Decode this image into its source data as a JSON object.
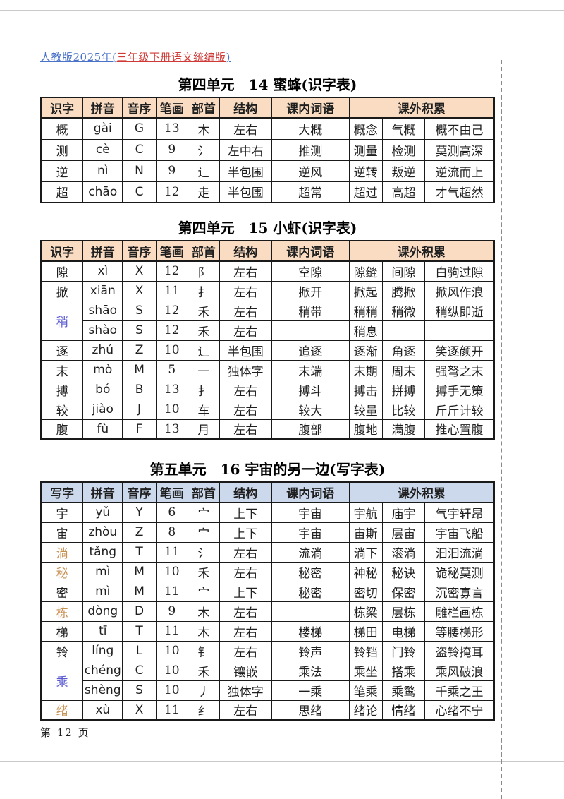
{
  "page": {
    "header": {
      "prefix": "人教版2025年(",
      "highlight": "三年级下册语文统编版",
      "suffix": ")"
    },
    "footer": "第 12 页"
  },
  "colors": {
    "header_peach": "#fadcc3",
    "header_blue": "#ccd8ec",
    "char_blue": "#5b5bd0",
    "char_orange": "#c89050",
    "link_blue": "#4a72c8",
    "link_red": "#d03a36"
  },
  "tables": [
    {
      "title": "第四单元　14 蜜蜂(识字表)",
      "header_bg": "peach",
      "headers": [
        "识字",
        "拼音",
        "音序",
        "笔画",
        "部首",
        "结构",
        "课内词语",
        "课外积累"
      ],
      "rows": [
        {
          "char": "概",
          "color": "normal",
          "rowspan": 1,
          "pinyin": "gài",
          "initial": "G",
          "strokes": "13",
          "radical": "木",
          "structure": "左右",
          "word": "大概",
          "extra": [
            "概念",
            "气概",
            "概不由己"
          ]
        },
        {
          "char": "测",
          "color": "normal",
          "rowspan": 1,
          "pinyin": "cè",
          "initial": "C",
          "strokes": "9",
          "radical": "氵",
          "structure": "左中右",
          "word": "推测",
          "extra": [
            "测量",
            "检测",
            "莫测高深"
          ]
        },
        {
          "char": "逆",
          "color": "normal",
          "rowspan": 1,
          "pinyin": "nì",
          "initial": "N",
          "strokes": "9",
          "radical": "辶",
          "structure": "半包围",
          "word": "逆风",
          "extra": [
            "逆转",
            "叛逆",
            "逆流而上"
          ]
        },
        {
          "char": "超",
          "color": "normal",
          "rowspan": 1,
          "pinyin": "chāo",
          "initial": "C",
          "strokes": "12",
          "radical": "走",
          "structure": "半包围",
          "word": "超常",
          "extra": [
            "超过",
            "高超",
            "才气超然"
          ]
        }
      ]
    },
    {
      "title": "第四单元　15 小虾(识字表)",
      "header_bg": "peach",
      "headers": [
        "识字",
        "拼音",
        "音序",
        "笔画",
        "部首",
        "结构",
        "课内词语",
        "课外积累"
      ],
      "rows": [
        {
          "char": "隙",
          "color": "normal",
          "rowspan": 1,
          "pinyin": "xì",
          "initial": "X",
          "strokes": "12",
          "radical": "阝",
          "structure": "左右",
          "word": "空隙",
          "extra": [
            "隙缝",
            "间隙",
            "白驹过隙"
          ]
        },
        {
          "char": "掀",
          "color": "normal",
          "rowspan": 1,
          "pinyin": "xiān",
          "initial": "X",
          "strokes": "11",
          "radical": "扌",
          "structure": "左右",
          "word": "掀开",
          "extra": [
            "掀起",
            "腾掀",
            "掀风作浪"
          ]
        },
        {
          "char": "稍",
          "color": "blue",
          "rowspan": 2,
          "pinyin": "shāo",
          "initial": "S",
          "strokes": "12",
          "radical": "禾",
          "structure": "左右",
          "word": "稍带",
          "extra": [
            "稍稍",
            "稍微",
            "稍纵即逝"
          ]
        },
        {
          "char": null,
          "color": "normal",
          "rowspan": 1,
          "pinyin": "shào",
          "initial": "S",
          "strokes": "12",
          "radical": "禾",
          "structure": "左右",
          "word": "",
          "extra": [
            "稍息",
            "",
            ""
          ]
        },
        {
          "char": "逐",
          "color": "normal",
          "rowspan": 1,
          "pinyin": "zhú",
          "initial": "Z",
          "strokes": "10",
          "radical": "辶",
          "structure": "半包围",
          "word": "追逐",
          "extra": [
            "逐渐",
            "角逐",
            "笑逐颜开"
          ]
        },
        {
          "char": "末",
          "color": "normal",
          "rowspan": 1,
          "pinyin": "mò",
          "initial": "M",
          "strokes": "5",
          "radical": "一",
          "structure": "独体字",
          "word": "末端",
          "extra": [
            "末期",
            "周末",
            "强弩之末"
          ]
        },
        {
          "char": "搏",
          "color": "normal",
          "rowspan": 1,
          "pinyin": "bó",
          "initial": "B",
          "strokes": "13",
          "radical": "扌",
          "structure": "左右",
          "word": "搏斗",
          "extra": [
            "搏击",
            "拼搏",
            "搏手无策"
          ]
        },
        {
          "char": "较",
          "color": "normal",
          "rowspan": 1,
          "pinyin": "jiào",
          "initial": "J",
          "strokes": "10",
          "radical": "车",
          "structure": "左右",
          "word": "较大",
          "extra": [
            "较量",
            "比较",
            "斤斤计较"
          ]
        },
        {
          "char": "腹",
          "color": "normal",
          "rowspan": 1,
          "pinyin": "fù",
          "initial": "F",
          "strokes": "13",
          "radical": "月",
          "structure": "左右",
          "word": "腹部",
          "extra": [
            "腹地",
            "满腹",
            "推心置腹"
          ]
        }
      ]
    },
    {
      "title": "第五单元　16 宇宙的另一边(写字表)",
      "header_bg": "blue",
      "headers": [
        "写字",
        "拼音",
        "音序",
        "笔画",
        "部首",
        "结构",
        "课内词语",
        "课外积累"
      ],
      "rows": [
        {
          "char": "宇",
          "color": "normal",
          "rowspan": 1,
          "pinyin": "yǔ",
          "initial": "Y",
          "strokes": "6",
          "radical": "宀",
          "structure": "上下",
          "word": "宇宙",
          "extra": [
            "宇航",
            "庙宇",
            "气宇轩昂"
          ]
        },
        {
          "char": "宙",
          "color": "normal",
          "rowspan": 1,
          "pinyin": "zhòu",
          "initial": "Z",
          "strokes": "8",
          "radical": "宀",
          "structure": "上下",
          "word": "宇宙",
          "extra": [
            "宙斯",
            "层宙",
            "宇宙飞船"
          ]
        },
        {
          "char": "淌",
          "color": "orange",
          "rowspan": 1,
          "pinyin": "tǎng",
          "initial": "T",
          "strokes": "11",
          "radical": "氵",
          "structure": "左右",
          "word": "流淌",
          "extra": [
            "淌下",
            "滚淌",
            "汩汩流淌"
          ]
        },
        {
          "char": "秘",
          "color": "orange",
          "rowspan": 1,
          "pinyin": "mì",
          "initial": "M",
          "strokes": "10",
          "radical": "禾",
          "structure": "左右",
          "word": "秘密",
          "extra": [
            "神秘",
            "秘诀",
            "诡秘莫测"
          ]
        },
        {
          "char": "密",
          "color": "normal",
          "rowspan": 1,
          "pinyin": "mì",
          "initial": "M",
          "strokes": "11",
          "radical": "宀",
          "structure": "上下",
          "word": "秘密",
          "extra": [
            "密切",
            "保密",
            "沉密寡言"
          ]
        },
        {
          "char": "栋",
          "color": "orange",
          "rowspan": 1,
          "pinyin": "dòng",
          "initial": "D",
          "strokes": "9",
          "radical": "木",
          "structure": "左右",
          "word": "",
          "extra": [
            "栋梁",
            "层栋",
            "雕栏画栋"
          ]
        },
        {
          "char": "梯",
          "color": "normal",
          "rowspan": 1,
          "pinyin": "tī",
          "initial": "T",
          "strokes": "11",
          "radical": "木",
          "structure": "左右",
          "word": "楼梯",
          "extra": [
            "梯田",
            "电梯",
            "等腰梯形"
          ]
        },
        {
          "char": "铃",
          "color": "normal",
          "rowspan": 1,
          "pinyin": "líng",
          "initial": "L",
          "strokes": "10",
          "radical": "钅",
          "structure": "左右",
          "word": "铃声",
          "extra": [
            "铃铛",
            "门铃",
            "盗铃掩耳"
          ]
        },
        {
          "char": "乘",
          "color": "blue",
          "rowspan": 2,
          "pinyin": "chéng",
          "initial": "C",
          "strokes": "10",
          "radical": "禾",
          "structure": "镶嵌",
          "word": "乘法",
          "extra": [
            "乘坐",
            "搭乘",
            "乘风破浪"
          ]
        },
        {
          "char": null,
          "color": "normal",
          "rowspan": 1,
          "pinyin": "shèng",
          "initial": "S",
          "strokes": "10",
          "radical": "丿",
          "structure": "独体字",
          "word": "一乘",
          "extra": [
            "笔乘",
            "乘鹜",
            "千乘之王"
          ]
        },
        {
          "char": "绪",
          "color": "orange",
          "rowspan": 1,
          "pinyin": "xù",
          "initial": "X",
          "strokes": "11",
          "radical": "纟",
          "structure": "左右",
          "word": "思绪",
          "extra": [
            "绪论",
            "情绪",
            "心绪不宁"
          ]
        }
      ]
    }
  ]
}
